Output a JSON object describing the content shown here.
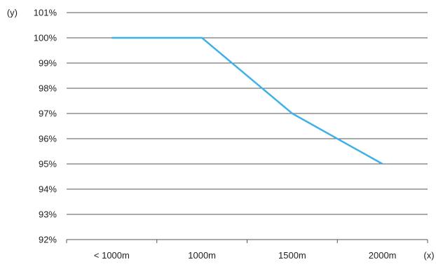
{
  "chart_data": {
    "type": "line",
    "title": "",
    "xlabel": "(x)",
    "ylabel": "(y)",
    "categories": [
      "< 1000m",
      "1000m",
      "1500m",
      "2000m"
    ],
    "series": [
      {
        "values": [
          100,
          100,
          97,
          95
        ]
      }
    ],
    "y_ticks": [
      "92%",
      "93%",
      "94%",
      "95%",
      "96%",
      "97%",
      "98%",
      "99%",
      "100%",
      "101%"
    ],
    "ylim": [
      92,
      101
    ],
    "grid": true,
    "legend": "none",
    "colors": {
      "line": "#3fb1e8",
      "grid": "#555555",
      "grid_emphasis": "#aaaaaa",
      "axis": "#555555"
    }
  }
}
